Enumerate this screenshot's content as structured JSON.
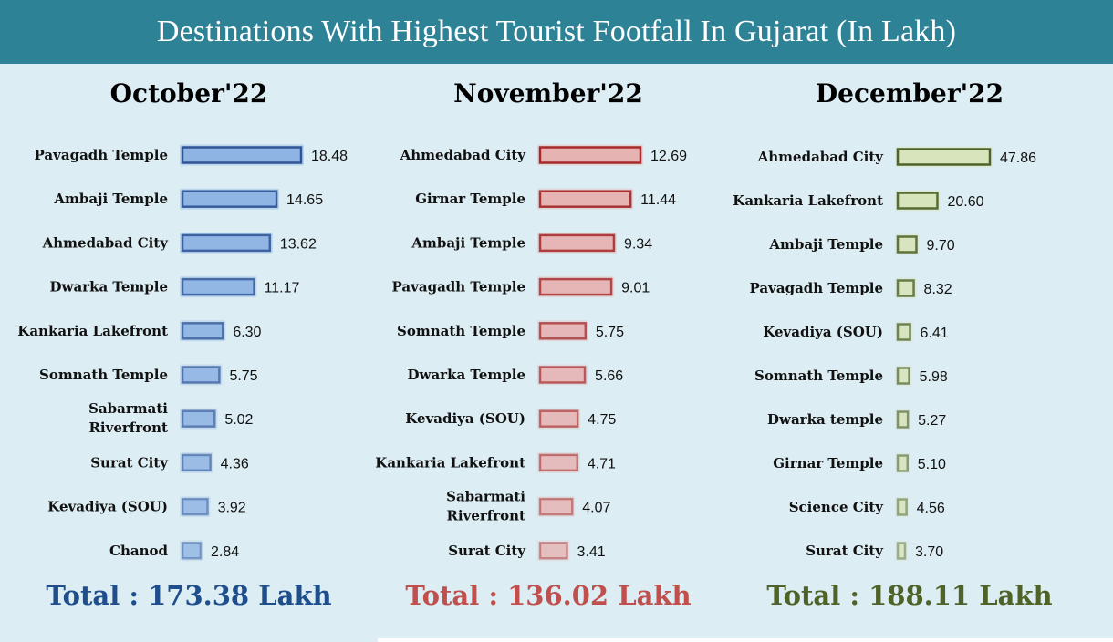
{
  "title": "Destinations With Highest Tourist Footfall In Gujarat (In Lakh)",
  "chart_data": [
    {
      "type": "bar",
      "title": "October'22",
      "categories": [
        "Pavagadh Temple",
        "Ambaji Temple",
        "Ahmedabad City",
        "Dwarka Temple",
        "Kankaria Lakefront",
        "Somnath Temple",
        "Sabarmati Riverfront",
        "Surat City",
        "Kevadiya (SOU)",
        "Chanod"
      ],
      "values": [
        18.48,
        14.65,
        13.62,
        11.17,
        6.3,
        5.75,
        5.02,
        4.36,
        3.92,
        2.84
      ],
      "value_labels": [
        "18.48",
        "14.65",
        "13.62",
        "11.17",
        "6.30",
        "5.75",
        "5.02",
        "4.36",
        "3.92",
        "2.84"
      ],
      "total": "Total : 173.38 Lakh",
      "colors": {
        "fill": "#8eb4e3",
        "edge": "#2f5597",
        "total": "#1f4e8c"
      }
    },
    {
      "type": "bar",
      "title": "November'22",
      "categories": [
        "Ahmedabad City",
        "Girnar Temple",
        "Ambaji Temple",
        "Pavagadh Temple",
        "Somnath Temple",
        "Dwarka Temple",
        "Kevadiya (SOU)",
        "Kankaria Lakefront",
        "Sabarmati Riverfront",
        "Surat City"
      ],
      "values": [
        12.69,
        11.44,
        9.34,
        9.01,
        5.75,
        5.66,
        4.75,
        4.71,
        4.07,
        3.41
      ],
      "value_labels": [
        "12.69",
        "11.44",
        "9.34",
        "9.01",
        "5.75",
        "5.66",
        "4.75",
        "4.71",
        "4.07",
        "3.41"
      ],
      "total": "Total : 136.02 Lakh",
      "colors": {
        "fill": "#e6b3b3",
        "edge": "#a52a2a",
        "total": "#c0504d"
      }
    },
    {
      "type": "bar",
      "title": "December'22",
      "categories": [
        "Ahmedabad City",
        "Kankaria Lakefront",
        "Ambaji Temple",
        "Pavagadh Temple",
        "Kevadiya (SOU)",
        "Somnath Temple",
        "Dwarka temple",
        "Girnar Temple",
        "Science City",
        "Surat City"
      ],
      "values": [
        47.86,
        20.6,
        9.7,
        8.32,
        6.41,
        5.98,
        5.27,
        5.1,
        4.56,
        3.7
      ],
      "value_labels": [
        "47.86",
        "20.60",
        "9.70",
        "8.32",
        "6.41",
        "5.98",
        "5.27",
        "5.10",
        "4.56",
        "3.70"
      ],
      "total": "Total : 188.11 Lakh",
      "colors": {
        "fill": "#d7e4bc",
        "edge": "#4f6228",
        "total": "#4f6228"
      }
    }
  ]
}
